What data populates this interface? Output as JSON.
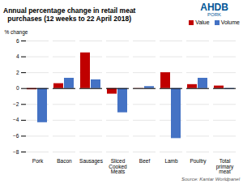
{
  "chart_data": {
    "type": "bar",
    "title": "Annual percentage change in retail meat\npurchases (12 weeks to 22 April 2018)",
    "ylabel": "% change",
    "categories": [
      "Pork",
      "Bacon",
      "Sausages",
      "Sliced\nCooked\nMeats",
      "Beef",
      "Lamb",
      "Poultry",
      "Total\nprimary\nmeat"
    ],
    "series": [
      {
        "name": "Value",
        "color": "#c00000",
        "values": [
          -0.15,
          0.62,
          4.5,
          -0.7,
          0.02,
          2.0,
          0.5,
          0.32
        ]
      },
      {
        "name": "Volume",
        "color": "#4472c4",
        "values": [
          -4.3,
          1.3,
          1.1,
          -3.05,
          0.25,
          -6.3,
          1.3,
          -0.1
        ]
      }
    ],
    "ylim": [
      -8,
      6
    ],
    "yticks": [
      -8,
      -6,
      -4,
      -2,
      0,
      2,
      4,
      6
    ],
    "grid": true,
    "legend": "upper right",
    "annotations": [
      {
        "text": "AHDB",
        "color": "#005596"
      },
      {
        "text": "PORK",
        "color": "#005596"
      },
      {
        "text": "Source: Kantar Worldpanel",
        "color": "#555555"
      }
    ]
  }
}
